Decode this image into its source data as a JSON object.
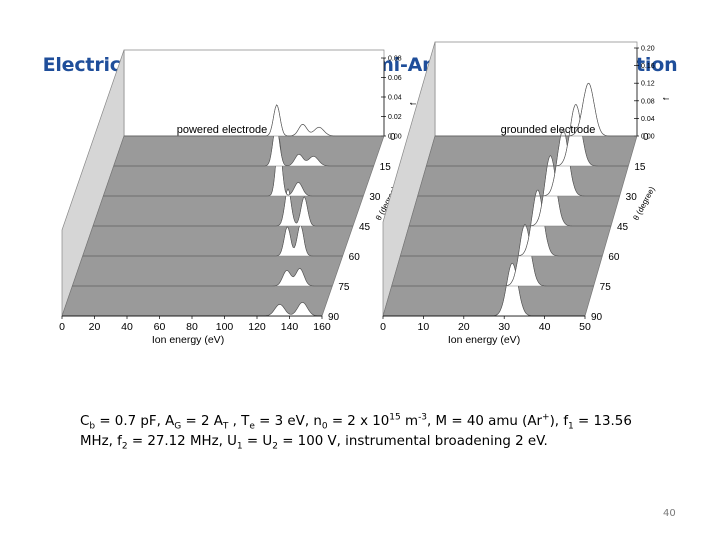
{
  "slide": {
    "title": "Electrical Asymmetry Effect: Semi-Analytic Model Prediction",
    "page_number": "40"
  },
  "caption": {
    "parts": [
      {
        "t": "C"
      },
      {
        "t": "b",
        "sub": true
      },
      {
        "t": " = 0.7 pF, A"
      },
      {
        "t": "G",
        "sub": true
      },
      {
        "t": " = 2 A"
      },
      {
        "t": "T",
        "sub": true
      },
      {
        "t": " , T"
      },
      {
        "t": "e",
        "sub": true
      },
      {
        "t": " = 3 eV, n"
      },
      {
        "t": "0",
        "sub": true
      },
      {
        "t": " = 2 x 10"
      },
      {
        "t": "15",
        "sup": true
      },
      {
        "t": " m"
      },
      {
        "t": "-3",
        "sup": true
      },
      {
        "t": ", M = 40 amu (Ar"
      },
      {
        "t": "+",
        "sup": true
      },
      {
        "t": "), f"
      },
      {
        "t": "1",
        "sub": true
      },
      {
        "t": " = 13.56 MHz, f"
      },
      {
        "t": "2",
        "sub": true
      },
      {
        "t": " = 27.12 MHz, U"
      },
      {
        "t": "1",
        "sub": true
      },
      {
        "t": " = U"
      },
      {
        "t": "2",
        "sub": true
      },
      {
        "t": " = 100 V, instrumental broadening 2 eV."
      }
    ]
  },
  "chart_data": [
    {
      "type": "area",
      "title": "powered electrode",
      "xlabel": "Ion energy (eV)",
      "x_ticks": [
        "0",
        "20",
        "40",
        "60",
        "80",
        "100",
        "120",
        "140",
        "160"
      ],
      "xlim": [
        0,
        160
      ],
      "z_ticks": [
        "0.00",
        "0.02",
        "0.04",
        "0.06",
        "0.08"
      ],
      "zlim": [
        0,
        0.08
      ],
      "zlabel": "f",
      "ylabel": "θ (degree)",
      "y_ticks": [
        "0",
        "15",
        "30",
        "45",
        "60",
        "75",
        "90"
      ],
      "series": [
        {
          "name": "0",
          "peaks": [
            {
              "x": 94,
              "y": 0.032,
              "w": 2.0
            },
            {
              "x": 110,
              "y": 0.012,
              "w": 2.5
            },
            {
              "x": 120,
              "y": 0.009,
              "w": 3
            }
          ]
        },
        {
          "name": "15",
          "peaks": [
            {
              "x": 100,
              "y": 0.042,
              "w": 2.0
            },
            {
              "x": 114,
              "y": 0.012,
              "w": 2.5
            },
            {
              "x": 123,
              "y": 0.01,
              "w": 3
            }
          ]
        },
        {
          "name": "30",
          "peaks": [
            {
              "x": 108,
              "y": 0.06,
              "w": 1.8
            },
            {
              "x": 120,
              "y": 0.014,
              "w": 2.5
            }
          ]
        },
        {
          "name": "45",
          "peaks": [
            {
              "x": 120,
              "y": 0.038,
              "w": 2.0
            },
            {
              "x": 130,
              "y": 0.03,
              "w": 2.0
            }
          ]
        },
        {
          "name": "60",
          "peaks": [
            {
              "x": 126,
              "y": 0.03,
              "w": 2.0
            },
            {
              "x": 134,
              "y": 0.032,
              "w": 2.0
            }
          ]
        },
        {
          "name": "75",
          "peaks": [
            {
              "x": 132,
              "y": 0.016,
              "w": 2.5
            },
            {
              "x": 140,
              "y": 0.018,
              "w": 2.5
            }
          ]
        },
        {
          "name": "90",
          "peaks": [
            {
              "x": 134,
              "y": 0.012,
              "w": 3.0
            },
            {
              "x": 148,
              "y": 0.014,
              "w": 3.0
            }
          ]
        }
      ]
    },
    {
      "type": "area",
      "title": "grounded electrode",
      "xlabel": "Ion energy (eV)",
      "x_ticks": [
        "0",
        "10",
        "20",
        "30",
        "40",
        "50"
      ],
      "xlim": [
        0,
        50
      ],
      "z_ticks": [
        "0.00",
        "0.04",
        "0.08",
        "0.12",
        "0.16",
        "0.20"
      ],
      "zlim": [
        0,
        0.2
      ],
      "zlabel": "f",
      "ylabel": "θ (degree)",
      "y_ticks": [
        "0",
        "15",
        "30",
        "45",
        "60",
        "75",
        "90"
      ],
      "series": [
        {
          "name": "0",
          "peaks": [
            {
              "x": 38,
              "y": 0.12,
              "w": 1.4
            }
          ]
        },
        {
          "name": "15",
          "peaks": [
            {
              "x": 37,
              "y": 0.14,
              "w": 1.4
            }
          ]
        },
        {
          "name": "30",
          "peaks": [
            {
              "x": 36,
              "y": 0.15,
              "w": 1.4
            }
          ]
        },
        {
          "name": "45",
          "peaks": [
            {
              "x": 35,
              "y": 0.16,
              "w": 1.4
            }
          ]
        },
        {
          "name": "60",
          "peaks": [
            {
              "x": 34,
              "y": 0.15,
              "w": 1.4
            }
          ]
        },
        {
          "name": "75",
          "peaks": [
            {
              "x": 33,
              "y": 0.14,
              "w": 1.4
            }
          ]
        },
        {
          "name": "90",
          "peaks": [
            {
              "x": 32,
              "y": 0.12,
              "w": 1.4
            }
          ]
        }
      ]
    }
  ]
}
